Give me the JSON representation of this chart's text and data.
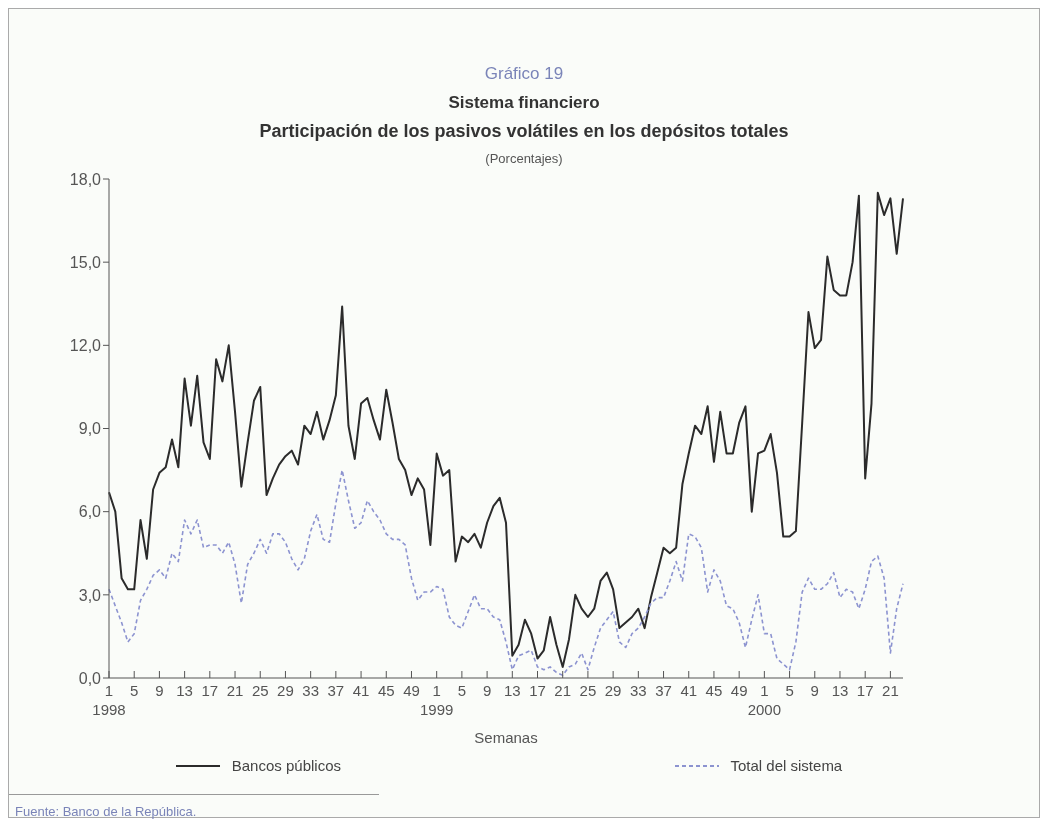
{
  "chart_data": {
    "type": "line",
    "title": "Sistema financiero",
    "subtitle": "Participación de los pasivos volátiles en los depósitos totales",
    "ylabel": "(Porcentajes)",
    "xlabel": "Semanas",
    "annotations": [
      "Gráfico 19",
      "Fuente: Banco de la República."
    ],
    "categories": [
      "1\n1998",
      null,
      null,
      null,
      "5",
      null,
      null,
      null,
      "9",
      null,
      null,
      null,
      "13",
      null,
      null,
      null,
      "17",
      null,
      null,
      null,
      "21",
      null,
      null,
      null,
      "25",
      null,
      null,
      null,
      "29",
      null,
      null,
      null,
      "33",
      null,
      null,
      null,
      "37",
      null,
      null,
      null,
      "41",
      null,
      null,
      null,
      "45",
      null,
      null,
      null,
      "49",
      null,
      null,
      null,
      "1\n1999",
      null,
      null,
      null,
      "5",
      null,
      null,
      null,
      "9",
      null,
      null,
      null,
      "13",
      null,
      null,
      null,
      "17",
      null,
      null,
      null,
      "21",
      null,
      null,
      null,
      "25",
      null,
      null,
      null,
      "29",
      null,
      null,
      null,
      "33",
      null,
      null,
      null,
      "37",
      null,
      null,
      null,
      "41",
      null,
      null,
      null,
      "45",
      null,
      null,
      null,
      "49",
      null,
      null,
      null,
      "1\n2000",
      null,
      null,
      null,
      "5",
      null,
      null,
      null,
      "9",
      null,
      null,
      null,
      "13",
      null,
      null,
      null,
      "17",
      null,
      null,
      null,
      "21",
      null,
      null
    ],
    "series": [
      {
        "name": "Bancos públicos",
        "color": "#2b2b2b",
        "line_style": "solid",
        "values": [
          6.7,
          6.0,
          3.6,
          3.2,
          3.2,
          5.7,
          4.3,
          6.8,
          7.4,
          7.6,
          8.6,
          7.6,
          10.8,
          9.1,
          10.9,
          8.5,
          7.9,
          11.5,
          10.7,
          12.0,
          9.6,
          6.9,
          8.5,
          10.0,
          10.5,
          6.6,
          7.2,
          7.7,
          8.0,
          8.2,
          7.7,
          9.1,
          8.8,
          9.6,
          8.6,
          9.3,
          10.2,
          13.4,
          9.1,
          7.9,
          9.9,
          10.1,
          9.3,
          8.6,
          10.4,
          9.2,
          7.9,
          7.5,
          6.6,
          7.2,
          6.8,
          4.8,
          8.1,
          7.3,
          7.5,
          4.2,
          5.1,
          4.9,
          5.2,
          4.7,
          5.6,
          6.2,
          6.5,
          5.6,
          0.8,
          1.2,
          2.1,
          1.6,
          0.7,
          1.0,
          2.2,
          1.2,
          0.4,
          1.4,
          3.0,
          2.5,
          2.2,
          2.5,
          3.5,
          3.8,
          3.2,
          1.8,
          2.0,
          2.2,
          2.5,
          1.8,
          2.9,
          3.8,
          4.7,
          4.5,
          4.7,
          7.0,
          8.1,
          9.1,
          8.8,
          9.8,
          7.8,
          9.6,
          8.1,
          8.1,
          9.2,
          9.8,
          6.0,
          8.1,
          8.2,
          8.8,
          7.4,
          5.1,
          5.1,
          5.3,
          9.2,
          13.2,
          11.9,
          12.2,
          15.2,
          14.0,
          13.8,
          13.8,
          15.0,
          17.4,
          7.2,
          9.9,
          17.5,
          16.7,
          17.3,
          15.3,
          17.3
        ]
      },
      {
        "name": "Total del sistema",
        "color": "#8c93d0",
        "line_style": "dashed",
        "values": [
          3.2,
          2.6,
          2.0,
          1.3,
          1.6,
          2.8,
          3.2,
          3.7,
          3.9,
          3.6,
          4.5,
          4.2,
          5.7,
          5.2,
          5.7,
          4.7,
          4.8,
          4.8,
          4.5,
          4.9,
          4.1,
          2.7,
          4.1,
          4.5,
          5.0,
          4.5,
          5.2,
          5.2,
          4.9,
          4.3,
          3.9,
          4.3,
          5.3,
          5.9,
          5.0,
          4.9,
          6.3,
          7.5,
          6.4,
          5.4,
          5.6,
          6.4,
          6.0,
          5.7,
          5.2,
          5.0,
          5.0,
          4.8,
          3.6,
          2.8,
          3.1,
          3.1,
          3.3,
          3.2,
          2.2,
          1.9,
          1.8,
          2.4,
          3.0,
          2.5,
          2.5,
          2.2,
          2.1,
          1.3,
          0.3,
          0.8,
          0.9,
          1.0,
          0.4,
          0.3,
          0.4,
          0.2,
          0.1,
          0.4,
          0.5,
          0.9,
          0.3,
          1.1,
          1.8,
          2.1,
          2.4,
          1.3,
          1.1,
          1.6,
          1.8,
          2.2,
          2.7,
          2.9,
          2.9,
          3.5,
          4.2,
          3.5,
          5.2,
          5.1,
          4.7,
          3.1,
          3.9,
          3.5,
          2.6,
          2.5,
          2.0,
          1.1,
          2.1,
          3.0,
          1.6,
          1.6,
          0.7,
          0.5,
          0.3,
          1.3,
          3.1,
          3.6,
          3.2,
          3.2,
          3.4,
          3.8,
          2.9,
          3.2,
          3.1,
          2.5,
          3.2,
          4.2,
          4.4,
          3.6,
          0.9,
          2.5,
          3.4
        ]
      }
    ],
    "ylim": [
      0,
      18
    ],
    "yticks": [
      {
        "value": 0,
        "label": "0,0"
      },
      {
        "value": 3,
        "label": "3,0"
      },
      {
        "value": 6,
        "label": "6,0"
      },
      {
        "value": 9,
        "label": "9,0"
      },
      {
        "value": 12,
        "label": "12,0"
      },
      {
        "value": 15,
        "label": "15,0"
      },
      {
        "value": 18,
        "label": "18,0"
      }
    ],
    "grid": false,
    "legend": "bottom"
  }
}
